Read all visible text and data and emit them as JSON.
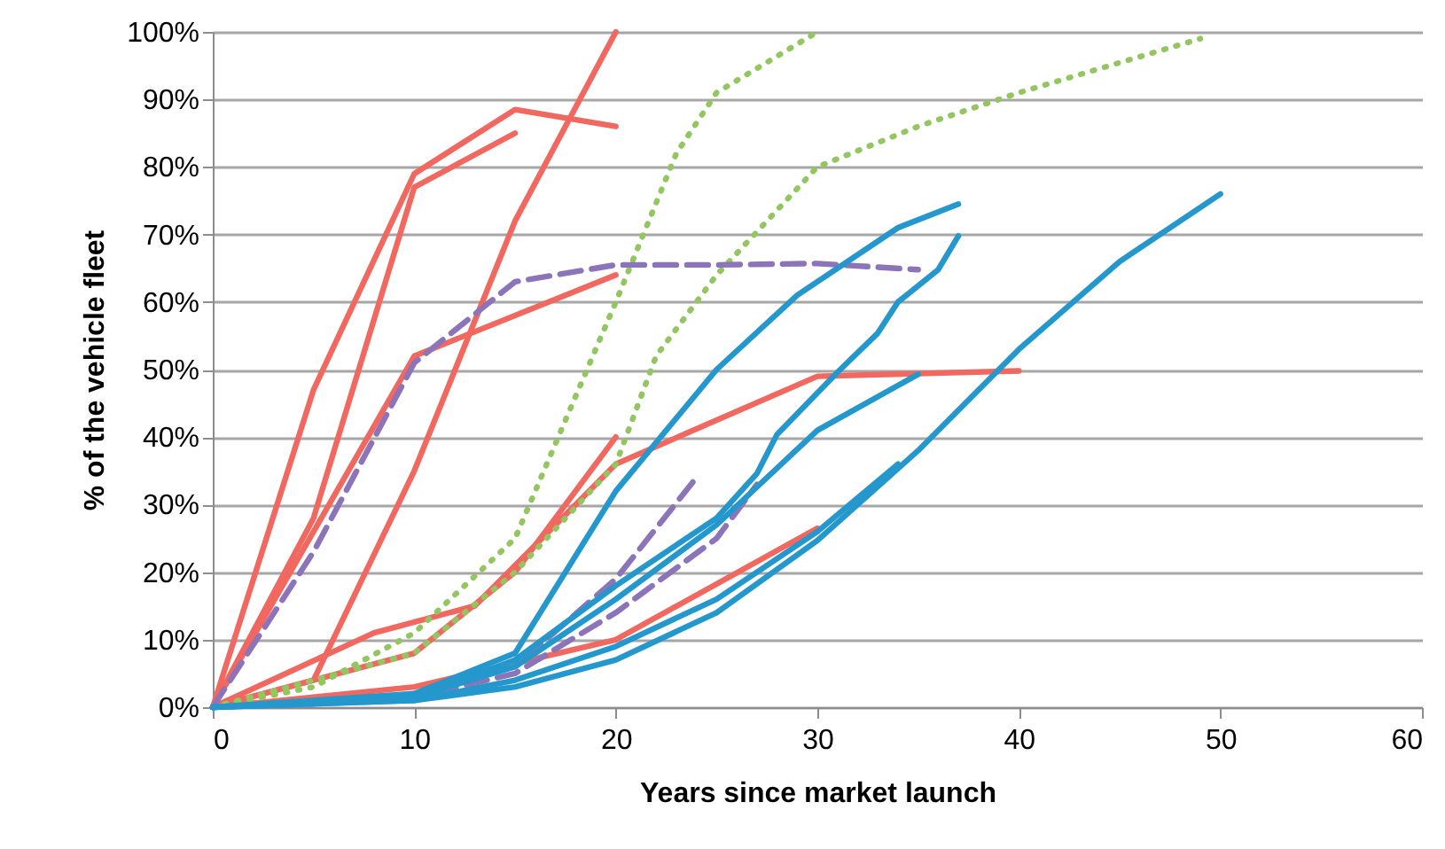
{
  "chart_data": {
    "type": "line",
    "xlabel": "Years since market launch",
    "ylabel": "% of the vehicle fleet",
    "xlim": [
      0,
      60
    ],
    "xticks": [
      0,
      10,
      20,
      30,
      40,
      50,
      60
    ],
    "ylim": [
      0,
      100
    ],
    "yticks": [
      {
        "value": 0,
        "label": "0%"
      },
      {
        "value": 10,
        "label": "10%"
      },
      {
        "value": 20,
        "label": "20%"
      },
      {
        "value": 30,
        "label": "30%"
      },
      {
        "value": 40,
        "label": "40%"
      },
      {
        "value": 50,
        "label": "50%"
      },
      {
        "value": 60,
        "label": "60%"
      },
      {
        "value": 70,
        "label": "70%"
      },
      {
        "value": 80,
        "label": "80%"
      },
      {
        "value": 90,
        "label": "90%"
      },
      {
        "value": 100,
        "label": "100%"
      }
    ],
    "grid": "y",
    "marker": "none",
    "series": [
      {
        "color": "#f0685f",
        "line_style": "solid",
        "x": [
          0,
          5,
          10,
          15,
          20
        ],
        "values": [
          0,
          47,
          79,
          88.5,
          86
        ]
      },
      {
        "color": "#f0685f",
        "line_style": "solid",
        "x": [
          0,
          5,
          10,
          15
        ],
        "values": [
          0,
          28,
          77,
          85
        ]
      },
      {
        "color": "#f0685f",
        "line_style": "solid",
        "x": [
          0,
          10,
          20
        ],
        "values": [
          0,
          52,
          64
        ]
      },
      {
        "color": "#f0685f",
        "line_style": "solid",
        "x": [
          0,
          5,
          10,
          15,
          20
        ],
        "values": [
          0,
          4,
          35,
          72,
          100
        ]
      },
      {
        "color": "#f0685f",
        "line_style": "solid",
        "x": [
          0,
          8,
          13,
          20,
          30,
          40
        ],
        "values": [
          0,
          11,
          15,
          36,
          49,
          49.8
        ]
      },
      {
        "color": "#f0685f",
        "line_style": "solid",
        "x": [
          0,
          10,
          15,
          20
        ],
        "values": [
          0,
          8,
          20,
          40
        ]
      },
      {
        "color": "#f0685f",
        "line_style": "solid",
        "x": [
          0,
          10,
          20,
          30
        ],
        "values": [
          0,
          3,
          10,
          26.5
        ]
      },
      {
        "color": "#93c560",
        "line_style": "dotted",
        "x": [
          0,
          5,
          10,
          15,
          20,
          23,
          25,
          30
        ],
        "values": [
          0,
          3,
          11,
          25,
          60,
          82,
          91,
          100
        ]
      },
      {
        "color": "#93c560",
        "line_style": "dotted",
        "x": [
          0,
          10,
          15,
          20,
          22,
          25,
          30,
          35,
          40,
          49
        ],
        "values": [
          0,
          8,
          20,
          36,
          52,
          64,
          80,
          86,
          91,
          99
        ]
      },
      {
        "color": "#8c74b9",
        "line_style": "dashed",
        "x": [
          0,
          5,
          10,
          15,
          20,
          25,
          30,
          35
        ],
        "values": [
          0,
          23,
          51,
          63,
          65.5,
          65.5,
          65.7,
          64.8
        ]
      },
      {
        "color": "#8c74b9",
        "line_style": "dashed",
        "x": [
          0,
          5,
          10,
          15,
          20,
          24
        ],
        "values": [
          0,
          0.5,
          2,
          6,
          19,
          34
        ]
      },
      {
        "color": "#8c74b9",
        "line_style": "dashed",
        "x": [
          0,
          10,
          15,
          20,
          25,
          27
        ],
        "values": [
          0,
          1.5,
          5,
          14,
          25,
          33
        ]
      },
      {
        "color": "#2498cd",
        "line_style": "solid",
        "x": [
          0,
          10,
          15,
          20,
          25,
          29,
          34,
          37
        ],
        "values": [
          0,
          2,
          8,
          32,
          50,
          61,
          71,
          74.5
        ]
      },
      {
        "color": "#2498cd",
        "line_style": "solid",
        "x": [
          0,
          10,
          15,
          20,
          25,
          27,
          28,
          31,
          33,
          34,
          36,
          37
        ],
        "values": [
          0,
          1.5,
          7,
          18,
          28,
          34.6,
          40.4,
          49.6,
          55.4,
          60,
          64.8,
          69.8
        ]
      },
      {
        "color": "#2498cd",
        "line_style": "solid",
        "x": [
          0,
          10,
          15,
          20,
          25,
          30,
          35
        ],
        "values": [
          0,
          1.5,
          6,
          16,
          27,
          41,
          49.3
        ]
      },
      {
        "color": "#2498cd",
        "line_style": "solid",
        "x": [
          0,
          10,
          15,
          20,
          25,
          30,
          35,
          40,
          45,
          50
        ],
        "values": [
          0,
          1,
          3,
          7,
          14,
          24.7,
          38,
          53,
          66,
          76
        ]
      },
      {
        "color": "#2498cd",
        "line_style": "solid",
        "x": [
          0,
          10,
          15,
          20,
          25,
          30,
          34
        ],
        "values": [
          0,
          1,
          4,
          9,
          16,
          26,
          36
        ]
      }
    ]
  }
}
